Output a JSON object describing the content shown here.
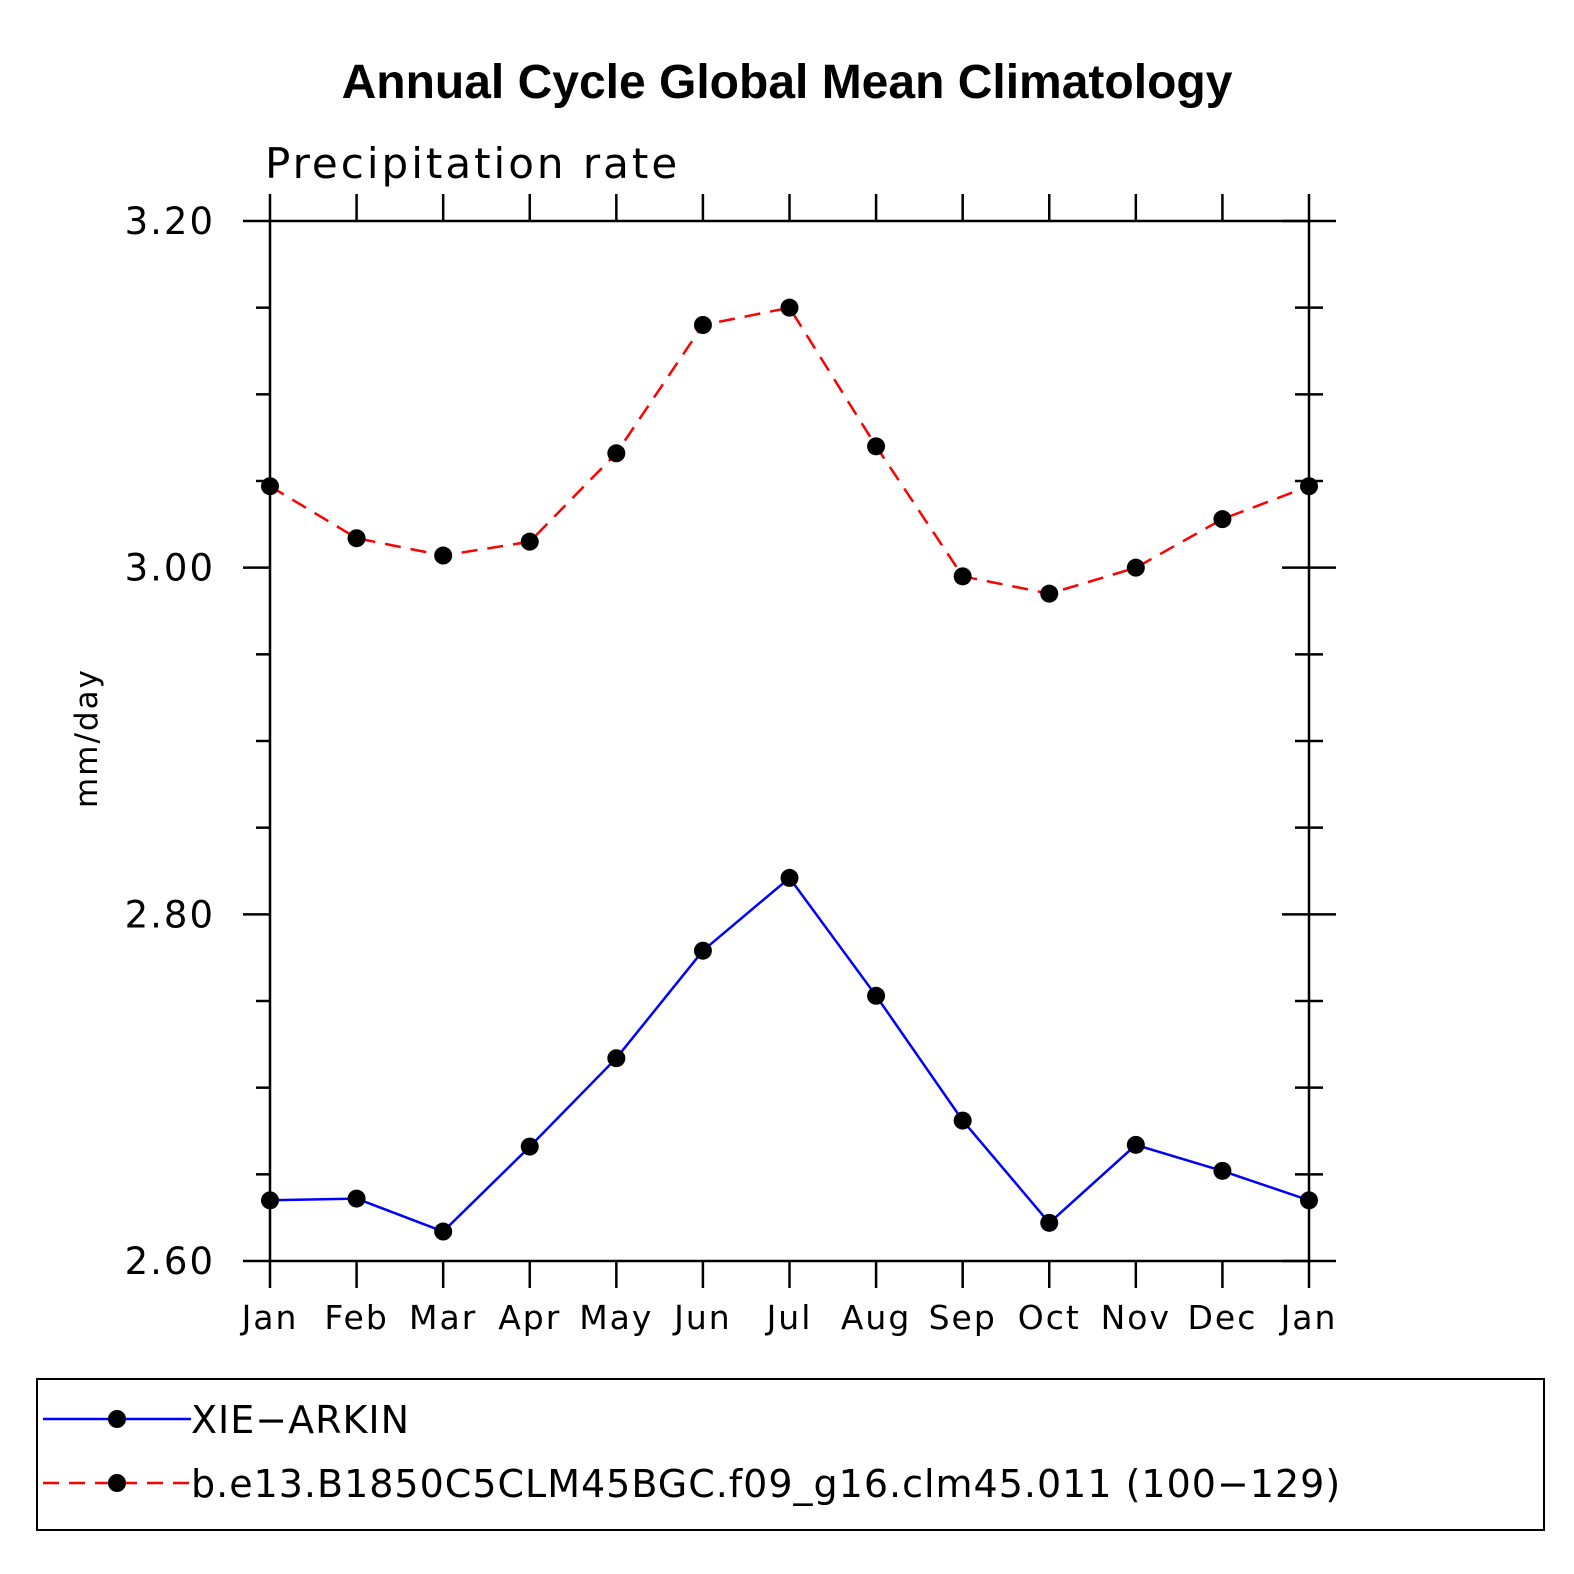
{
  "chart_data": {
    "type": "line",
    "title": "Annual Cycle Global Mean Climatology",
    "subtitle": "Precipitation rate",
    "xlabel": "",
    "ylabel": "mm/day",
    "categories": [
      "Jan",
      "Feb",
      "Mar",
      "Apr",
      "May",
      "Jun",
      "Jul",
      "Aug",
      "Sep",
      "Oct",
      "Nov",
      "Dec",
      "Jan"
    ],
    "ylim": [
      2.6,
      3.2
    ],
    "yticks": [
      2.6,
      2.8,
      3.0,
      3.2
    ],
    "ytick_labels": [
      "2.60",
      "2.80",
      "3.00",
      "3.20"
    ],
    "yminor_step": 0.05,
    "grid": false,
    "legend_position": "bottom",
    "series": [
      {
        "name": "XIE−ARKIN",
        "color": "#0000ff",
        "dash": "solid",
        "values": [
          2.635,
          2.636,
          2.617,
          2.666,
          2.717,
          2.779,
          2.821,
          2.753,
          2.681,
          2.622,
          2.667,
          2.652,
          2.635
        ]
      },
      {
        "name": "b.e13.B1850C5CLM45BGC.f09_g16.clm45.011 (100−129)",
        "color": "#ff0000",
        "dash": "dashed",
        "values": [
          3.047,
          3.017,
          3.007,
          3.015,
          3.066,
          3.14,
          3.15,
          3.07,
          2.995,
          2.985,
          3.0,
          3.028,
          3.047
        ]
      }
    ]
  }
}
